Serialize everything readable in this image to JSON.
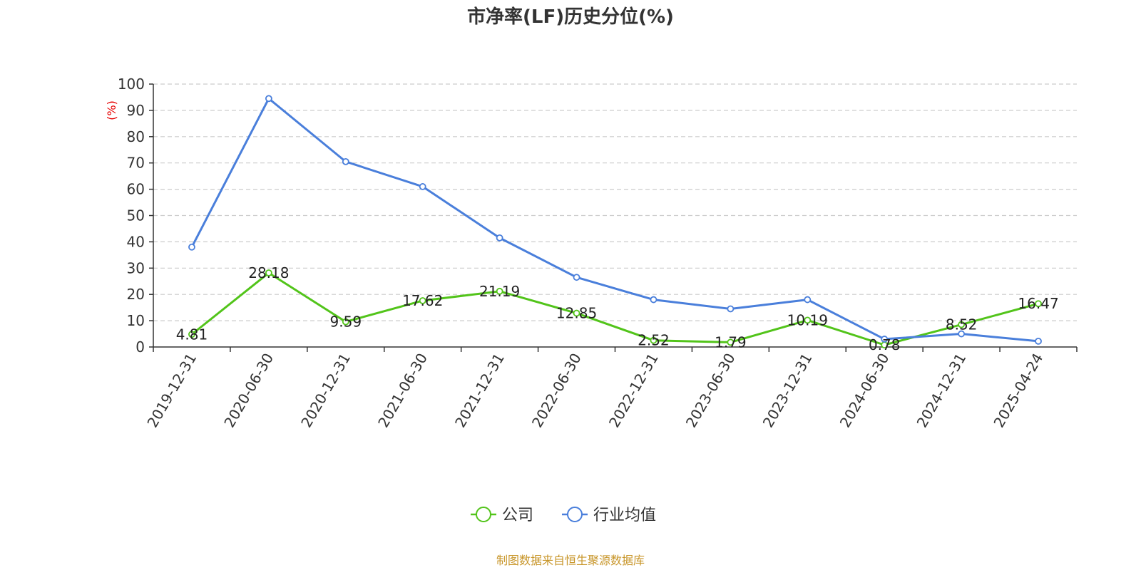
{
  "chart_data": {
    "type": "line",
    "title": "市净率(LF)历史分位(%)",
    "ylabel": "(%)",
    "ylim": [
      0,
      100
    ],
    "yticks": [
      0,
      10,
      20,
      30,
      40,
      50,
      60,
      70,
      80,
      90,
      100
    ],
    "grid": true,
    "legend_position": "bottom-center",
    "categories": [
      "2019-12-31",
      "2020-06-30",
      "2020-12-31",
      "2021-06-30",
      "2021-12-31",
      "2022-06-30",
      "2022-12-31",
      "2023-06-30",
      "2023-12-31",
      "2024-06-30",
      "2024-12-31",
      "2025-04-24"
    ],
    "series": [
      {
        "name": "公司",
        "color": "#52c41a",
        "show_labels": true,
        "values": [
          4.81,
          28.18,
          9.59,
          17.62,
          21.19,
          12.85,
          2.52,
          1.79,
          10.19,
          0.78,
          8.52,
          16.47
        ],
        "labels": [
          "4.81",
          "28.18",
          "9.59",
          "17.62",
          "21.19",
          "12.85",
          "2.52",
          "1.79",
          "10.19",
          "0.78",
          "8.52",
          "16.47"
        ]
      },
      {
        "name": "行业均值",
        "color": "#4a7fdb",
        "show_labels": false,
        "values": [
          38,
          94.5,
          70.5,
          61,
          41.5,
          26.5,
          18,
          14.5,
          18,
          3,
          5,
          2.2
        ]
      }
    ],
    "source": "制图数据来自恒生聚源数据库"
  },
  "colors": {
    "title": "#333333",
    "ylabel": "#e60000",
    "source": "#c8962a",
    "axis": "#333333",
    "grid": "#cccccc"
  }
}
